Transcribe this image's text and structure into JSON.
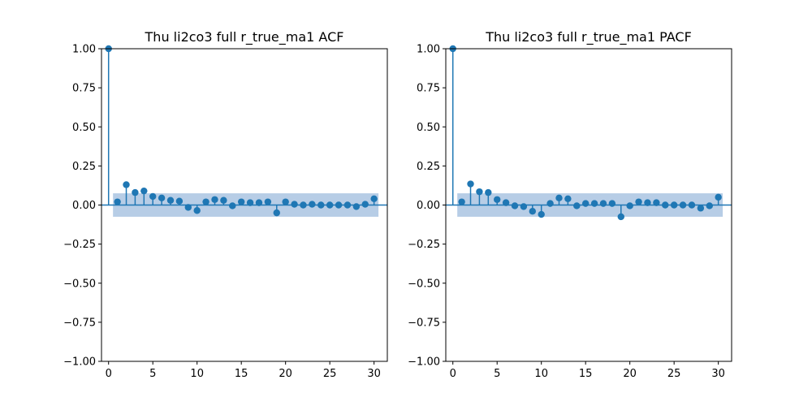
{
  "colors": {
    "stem": "#1f77b4",
    "band": "#b7cde6",
    "axis": "#000000"
  },
  "chart_data": [
    {
      "type": "scatter",
      "subtype": "stem",
      "title": "Thu li2co3 full r_true_ma1 ACF",
      "xlabel": "",
      "ylabel": "",
      "xlim": [
        -0.8,
        31.5
      ],
      "ylim": [
        -1.0,
        1.0
      ],
      "xticks": [
        0,
        5,
        10,
        15,
        20,
        25,
        30
      ],
      "xtick_labels": [
        "0",
        "5",
        "10",
        "15",
        "20",
        "25",
        "30"
      ],
      "yticks": [
        1.0,
        0.75,
        0.5,
        0.25,
        0.0,
        -0.25,
        -0.5,
        -0.75,
        -1.0
      ],
      "ytick_labels": [
        "1.00",
        "0.75",
        "0.50",
        "0.25",
        "0.00",
        "−0.25",
        "−0.50",
        "−0.75",
        "−1.00"
      ],
      "grid": false,
      "lags": [
        0,
        1,
        2,
        3,
        4,
        5,
        6,
        7,
        8,
        9,
        10,
        11,
        12,
        13,
        14,
        15,
        16,
        17,
        18,
        19,
        20,
        21,
        22,
        23,
        24,
        25,
        26,
        27,
        28,
        29,
        30
      ],
      "values": [
        1.0,
        0.02,
        0.13,
        0.08,
        0.09,
        0.055,
        0.045,
        0.03,
        0.025,
        -0.015,
        -0.035,
        0.02,
        0.035,
        0.03,
        -0.005,
        0.02,
        0.015,
        0.015,
        0.02,
        -0.05,
        0.02,
        0.005,
        0.0,
        0.005,
        0.0,
        0.0,
        0.0,
        0.0,
        -0.01,
        0.005,
        0.04
      ],
      "confidence_band": {
        "x_start": 0.5,
        "x_end": 30.5,
        "upper": 0.075,
        "lower": -0.075
      }
    },
    {
      "type": "scatter",
      "subtype": "stem",
      "title": "Thu li2co3 full r_true_ma1 PACF",
      "xlabel": "",
      "ylabel": "",
      "xlim": [
        -0.8,
        31.5
      ],
      "ylim": [
        -1.0,
        1.0
      ],
      "xticks": [
        0,
        5,
        10,
        15,
        20,
        25,
        30
      ],
      "xtick_labels": [
        "0",
        "5",
        "10",
        "15",
        "20",
        "25",
        "30"
      ],
      "yticks": [
        1.0,
        0.75,
        0.5,
        0.25,
        0.0,
        -0.25,
        -0.5,
        -0.75,
        -1.0
      ],
      "ytick_labels": [
        "1.00",
        "0.75",
        "0.50",
        "0.25",
        "0.00",
        "−0.25",
        "−0.50",
        "−0.75",
        "−1.00"
      ],
      "grid": false,
      "lags": [
        0,
        1,
        2,
        3,
        4,
        5,
        6,
        7,
        8,
        9,
        10,
        11,
        12,
        13,
        14,
        15,
        16,
        17,
        18,
        19,
        20,
        21,
        22,
        23,
        24,
        25,
        26,
        27,
        28,
        29,
        30
      ],
      "values": [
        1.0,
        0.02,
        0.135,
        0.085,
        0.08,
        0.035,
        0.015,
        -0.005,
        -0.01,
        -0.04,
        -0.06,
        0.01,
        0.045,
        0.04,
        -0.005,
        0.01,
        0.01,
        0.01,
        0.01,
        -0.075,
        -0.005,
        0.02,
        0.015,
        0.015,
        0.0,
        0.0,
        0.0,
        0.0,
        -0.02,
        -0.005,
        0.05
      ],
      "confidence_band": {
        "x_start": 0.5,
        "x_end": 30.5,
        "upper": 0.075,
        "lower": -0.075
      }
    }
  ]
}
